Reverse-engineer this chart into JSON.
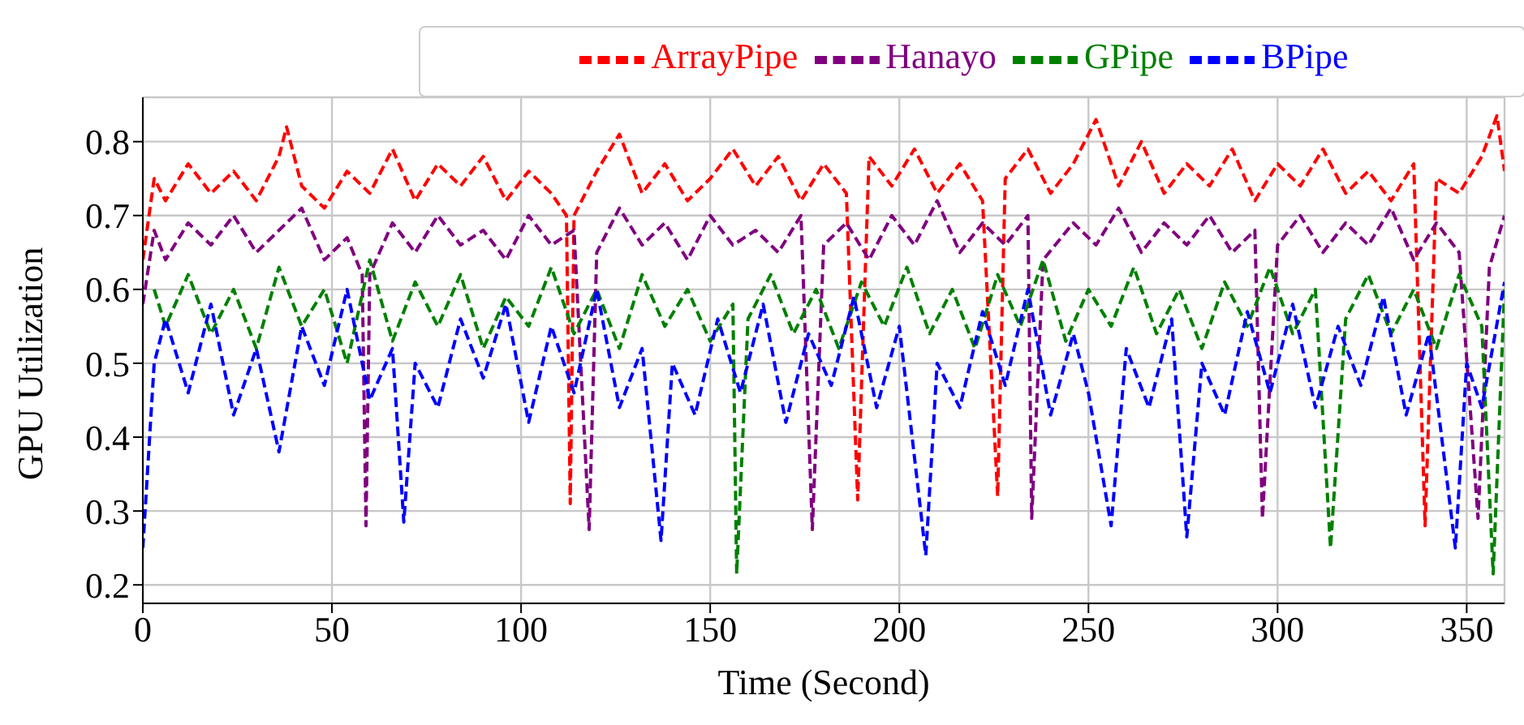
{
  "chart_data": {
    "type": "line",
    "xlabel": "Time (Second)",
    "ylabel": "GPU Utilization",
    "xlim": [
      0,
      360
    ],
    "xticks": [
      0,
      50,
      100,
      150,
      200,
      250,
      300,
      350
    ],
    "ylim": [
      0.175,
      0.86
    ],
    "yticks": [
      0.2,
      0.3,
      0.4,
      0.5,
      0.6,
      0.7,
      0.8
    ],
    "grid": true,
    "legend": "top",
    "line_style": "dashed",
    "series": [
      {
        "name": "ArrayPipe",
        "color": "#ff0000",
        "x": [
          0,
          3,
          6,
          12,
          18,
          24,
          30,
          36,
          38,
          42,
          48,
          54,
          60,
          66,
          72,
          78,
          84,
          90,
          96,
          102,
          108,
          112,
          113,
          114,
          120,
          126,
          132,
          138,
          144,
          150,
          156,
          162,
          168,
          174,
          180,
          186,
          189,
          192,
          198,
          204,
          210,
          216,
          222,
          226,
          228,
          234,
          240,
          246,
          252,
          258,
          264,
          270,
          276,
          282,
          288,
          294,
          300,
          306,
          312,
          318,
          324,
          330,
          336,
          339,
          342,
          348,
          354,
          358,
          360
        ],
        "values": [
          0.64,
          0.75,
          0.72,
          0.77,
          0.73,
          0.76,
          0.72,
          0.78,
          0.82,
          0.74,
          0.71,
          0.76,
          0.73,
          0.79,
          0.72,
          0.77,
          0.74,
          0.78,
          0.72,
          0.76,
          0.73,
          0.7,
          0.31,
          0.7,
          0.76,
          0.81,
          0.73,
          0.77,
          0.72,
          0.75,
          0.79,
          0.74,
          0.78,
          0.72,
          0.77,
          0.73,
          0.315,
          0.78,
          0.74,
          0.79,
          0.73,
          0.77,
          0.72,
          0.32,
          0.75,
          0.79,
          0.73,
          0.77,
          0.83,
          0.74,
          0.8,
          0.73,
          0.77,
          0.74,
          0.79,
          0.72,
          0.77,
          0.74,
          0.79,
          0.73,
          0.76,
          0.72,
          0.77,
          0.28,
          0.75,
          0.73,
          0.78,
          0.835,
          0.76
        ]
      },
      {
        "name": "Hanayo",
        "color": "#800080",
        "x": [
          0,
          3,
          6,
          12,
          18,
          24,
          30,
          36,
          42,
          48,
          54,
          58,
          59,
          60,
          66,
          72,
          78,
          84,
          90,
          96,
          102,
          108,
          114,
          118,
          120,
          126,
          132,
          138,
          144,
          150,
          156,
          162,
          168,
          174,
          177,
          180,
          186,
          192,
          198,
          204,
          210,
          216,
          222,
          228,
          234,
          235,
          238,
          246,
          252,
          258,
          264,
          270,
          276,
          282,
          288,
          294,
          296,
          300,
          306,
          312,
          318,
          324,
          330,
          336,
          342,
          348,
          353,
          356,
          360
        ],
        "values": [
          0.58,
          0.68,
          0.64,
          0.69,
          0.66,
          0.7,
          0.65,
          0.68,
          0.71,
          0.64,
          0.67,
          0.62,
          0.28,
          0.62,
          0.69,
          0.65,
          0.7,
          0.66,
          0.68,
          0.64,
          0.7,
          0.66,
          0.68,
          0.275,
          0.65,
          0.71,
          0.66,
          0.69,
          0.64,
          0.7,
          0.66,
          0.68,
          0.65,
          0.7,
          0.275,
          0.66,
          0.69,
          0.64,
          0.7,
          0.66,
          0.72,
          0.65,
          0.69,
          0.66,
          0.7,
          0.29,
          0.64,
          0.69,
          0.66,
          0.71,
          0.65,
          0.69,
          0.66,
          0.7,
          0.65,
          0.68,
          0.29,
          0.66,
          0.7,
          0.65,
          0.69,
          0.66,
          0.71,
          0.64,
          0.69,
          0.65,
          0.29,
          0.63,
          0.7
        ]
      },
      {
        "name": "GPipe",
        "color": "#008000",
        "x": [
          3,
          6,
          12,
          18,
          24,
          30,
          36,
          42,
          48,
          54,
          60,
          66,
          72,
          78,
          84,
          90,
          96,
          102,
          108,
          114,
          120,
          126,
          132,
          138,
          144,
          150,
          156,
          157,
          160,
          166,
          172,
          178,
          184,
          190,
          196,
          202,
          208,
          214,
          220,
          226,
          232,
          238,
          244,
          250,
          256,
          262,
          268,
          274,
          280,
          286,
          292,
          298,
          304,
          310,
          314,
          318,
          324,
          330,
          336,
          342,
          348,
          354,
          357,
          360
        ],
        "values": [
          0.6,
          0.55,
          0.62,
          0.54,
          0.6,
          0.52,
          0.63,
          0.55,
          0.6,
          0.5,
          0.64,
          0.53,
          0.61,
          0.55,
          0.62,
          0.52,
          0.59,
          0.55,
          0.63,
          0.54,
          0.6,
          0.52,
          0.62,
          0.55,
          0.6,
          0.53,
          0.58,
          0.215,
          0.56,
          0.62,
          0.54,
          0.6,
          0.52,
          0.61,
          0.55,
          0.63,
          0.54,
          0.6,
          0.52,
          0.62,
          0.55,
          0.64,
          0.53,
          0.6,
          0.55,
          0.63,
          0.54,
          0.6,
          0.52,
          0.61,
          0.55,
          0.63,
          0.54,
          0.6,
          0.25,
          0.56,
          0.62,
          0.54,
          0.6,
          0.52,
          0.62,
          0.55,
          0.215,
          0.6
        ]
      },
      {
        "name": "BPipe",
        "color": "#0000ff",
        "x": [
          0,
          3,
          6,
          12,
          18,
          24,
          30,
          36,
          42,
          48,
          54,
          60,
          66,
          69,
          72,
          78,
          84,
          90,
          96,
          102,
          108,
          114,
          120,
          126,
          132,
          137,
          140,
          146,
          152,
          158,
          164,
          170,
          176,
          182,
          188,
          194,
          200,
          207,
          210,
          216,
          222,
          228,
          234,
          240,
          246,
          250,
          256,
          260,
          266,
          272,
          276,
          280,
          286,
          292,
          298,
          304,
          310,
          316,
          322,
          328,
          334,
          340,
          347,
          350,
          354,
          360
        ],
        "values": [
          0.25,
          0.5,
          0.56,
          0.46,
          0.58,
          0.43,
          0.52,
          0.38,
          0.55,
          0.47,
          0.6,
          0.45,
          0.52,
          0.285,
          0.5,
          0.44,
          0.56,
          0.48,
          0.58,
          0.42,
          0.55,
          0.46,
          0.6,
          0.44,
          0.52,
          0.26,
          0.5,
          0.43,
          0.56,
          0.46,
          0.58,
          0.42,
          0.54,
          0.47,
          0.59,
          0.44,
          0.55,
          0.24,
          0.5,
          0.44,
          0.57,
          0.47,
          0.6,
          0.43,
          0.54,
          0.46,
          0.28,
          0.52,
          0.44,
          0.56,
          0.265,
          0.5,
          0.43,
          0.57,
          0.46,
          0.58,
          0.44,
          0.55,
          0.47,
          0.59,
          0.43,
          0.54,
          0.25,
          0.5,
          0.44,
          0.61
        ]
      }
    ]
  }
}
